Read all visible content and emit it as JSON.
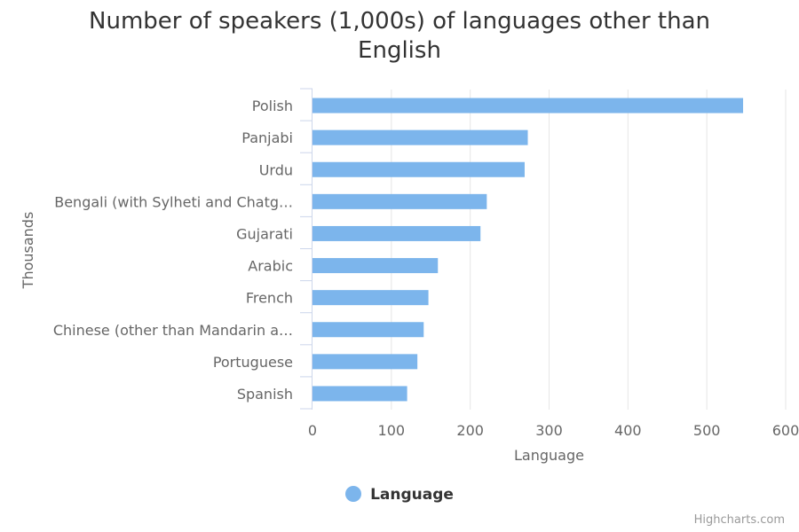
{
  "chart_data": {
    "type": "bar",
    "orientation": "horizontal",
    "title": "Number of speakers (1,000s) of languages other than English",
    "xlabel": "Language",
    "ylabel": "Thousands",
    "categories": [
      "Polish",
      "Panjabi",
      "Urdu",
      "Bengali (with Sylheti and Chatg…",
      "Gujarati",
      "Arabic",
      "French",
      "Chinese (other than Mandarin a…",
      "Portuguese",
      "Spanish"
    ],
    "series": [
      {
        "name": "Language",
        "values": [
          546,
          273,
          269,
          221,
          213,
          159,
          147,
          141,
          133,
          120
        ]
      }
    ],
    "xlim": [
      0,
      600
    ],
    "ticks": [
      0,
      100,
      200,
      300,
      400,
      500,
      600
    ],
    "grid": true,
    "legend": "bottom-center",
    "colors": {
      "bar": "#7cb5ec",
      "grid": "#e6e6e6",
      "axis": "#ccd6eb",
      "label": "#666666",
      "title": "#333333"
    }
  },
  "credits": "Highcharts.com"
}
